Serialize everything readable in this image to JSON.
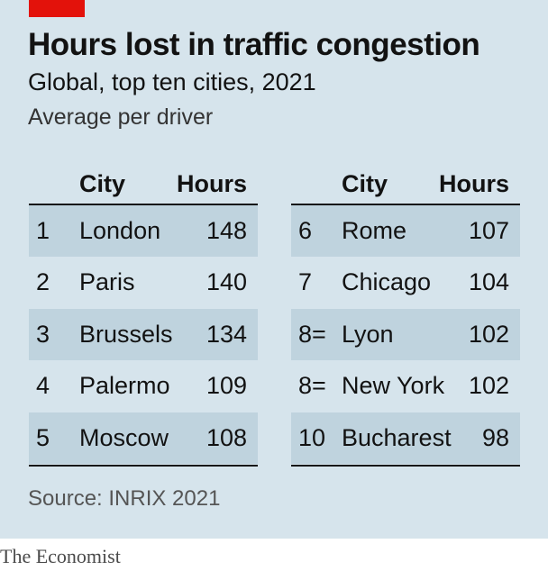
{
  "header": {
    "title": "Hours lost in traffic congestion",
    "subtitle": "Global, top ten cities, 2021",
    "unit_note": "Average per driver"
  },
  "colors": {
    "panel_background": "#d6e4ec",
    "shaded_row": "#bfd3de",
    "accent_red": "#e3120b",
    "text": "#121212"
  },
  "chart_data": {
    "type": "table",
    "title": "Hours lost in traffic congestion",
    "subtitle": "Global, top ten cities, 2021",
    "unit": "Average per driver",
    "columns": [
      "City",
      "Hours"
    ],
    "rows": [
      {
        "rank": "1",
        "city": "London",
        "hours": 148
      },
      {
        "rank": "2",
        "city": "Paris",
        "hours": 140
      },
      {
        "rank": "3",
        "city": "Brussels",
        "hours": 134
      },
      {
        "rank": "4",
        "city": "Palermo",
        "hours": 109
      },
      {
        "rank": "5",
        "city": "Moscow",
        "hours": 108
      },
      {
        "rank": "6",
        "city": "Rome",
        "hours": 107
      },
      {
        "rank": "7",
        "city": "Chicago",
        "hours": 104
      },
      {
        "rank": "8=",
        "city": "Lyon",
        "hours": 102
      },
      {
        "rank": "8=",
        "city": "New York",
        "hours": 102
      },
      {
        "rank": "10",
        "city": "Bucharest",
        "hours": 98
      }
    ]
  },
  "footer": {
    "source": "Source: INRIX 2021",
    "brand": "The Economist"
  }
}
